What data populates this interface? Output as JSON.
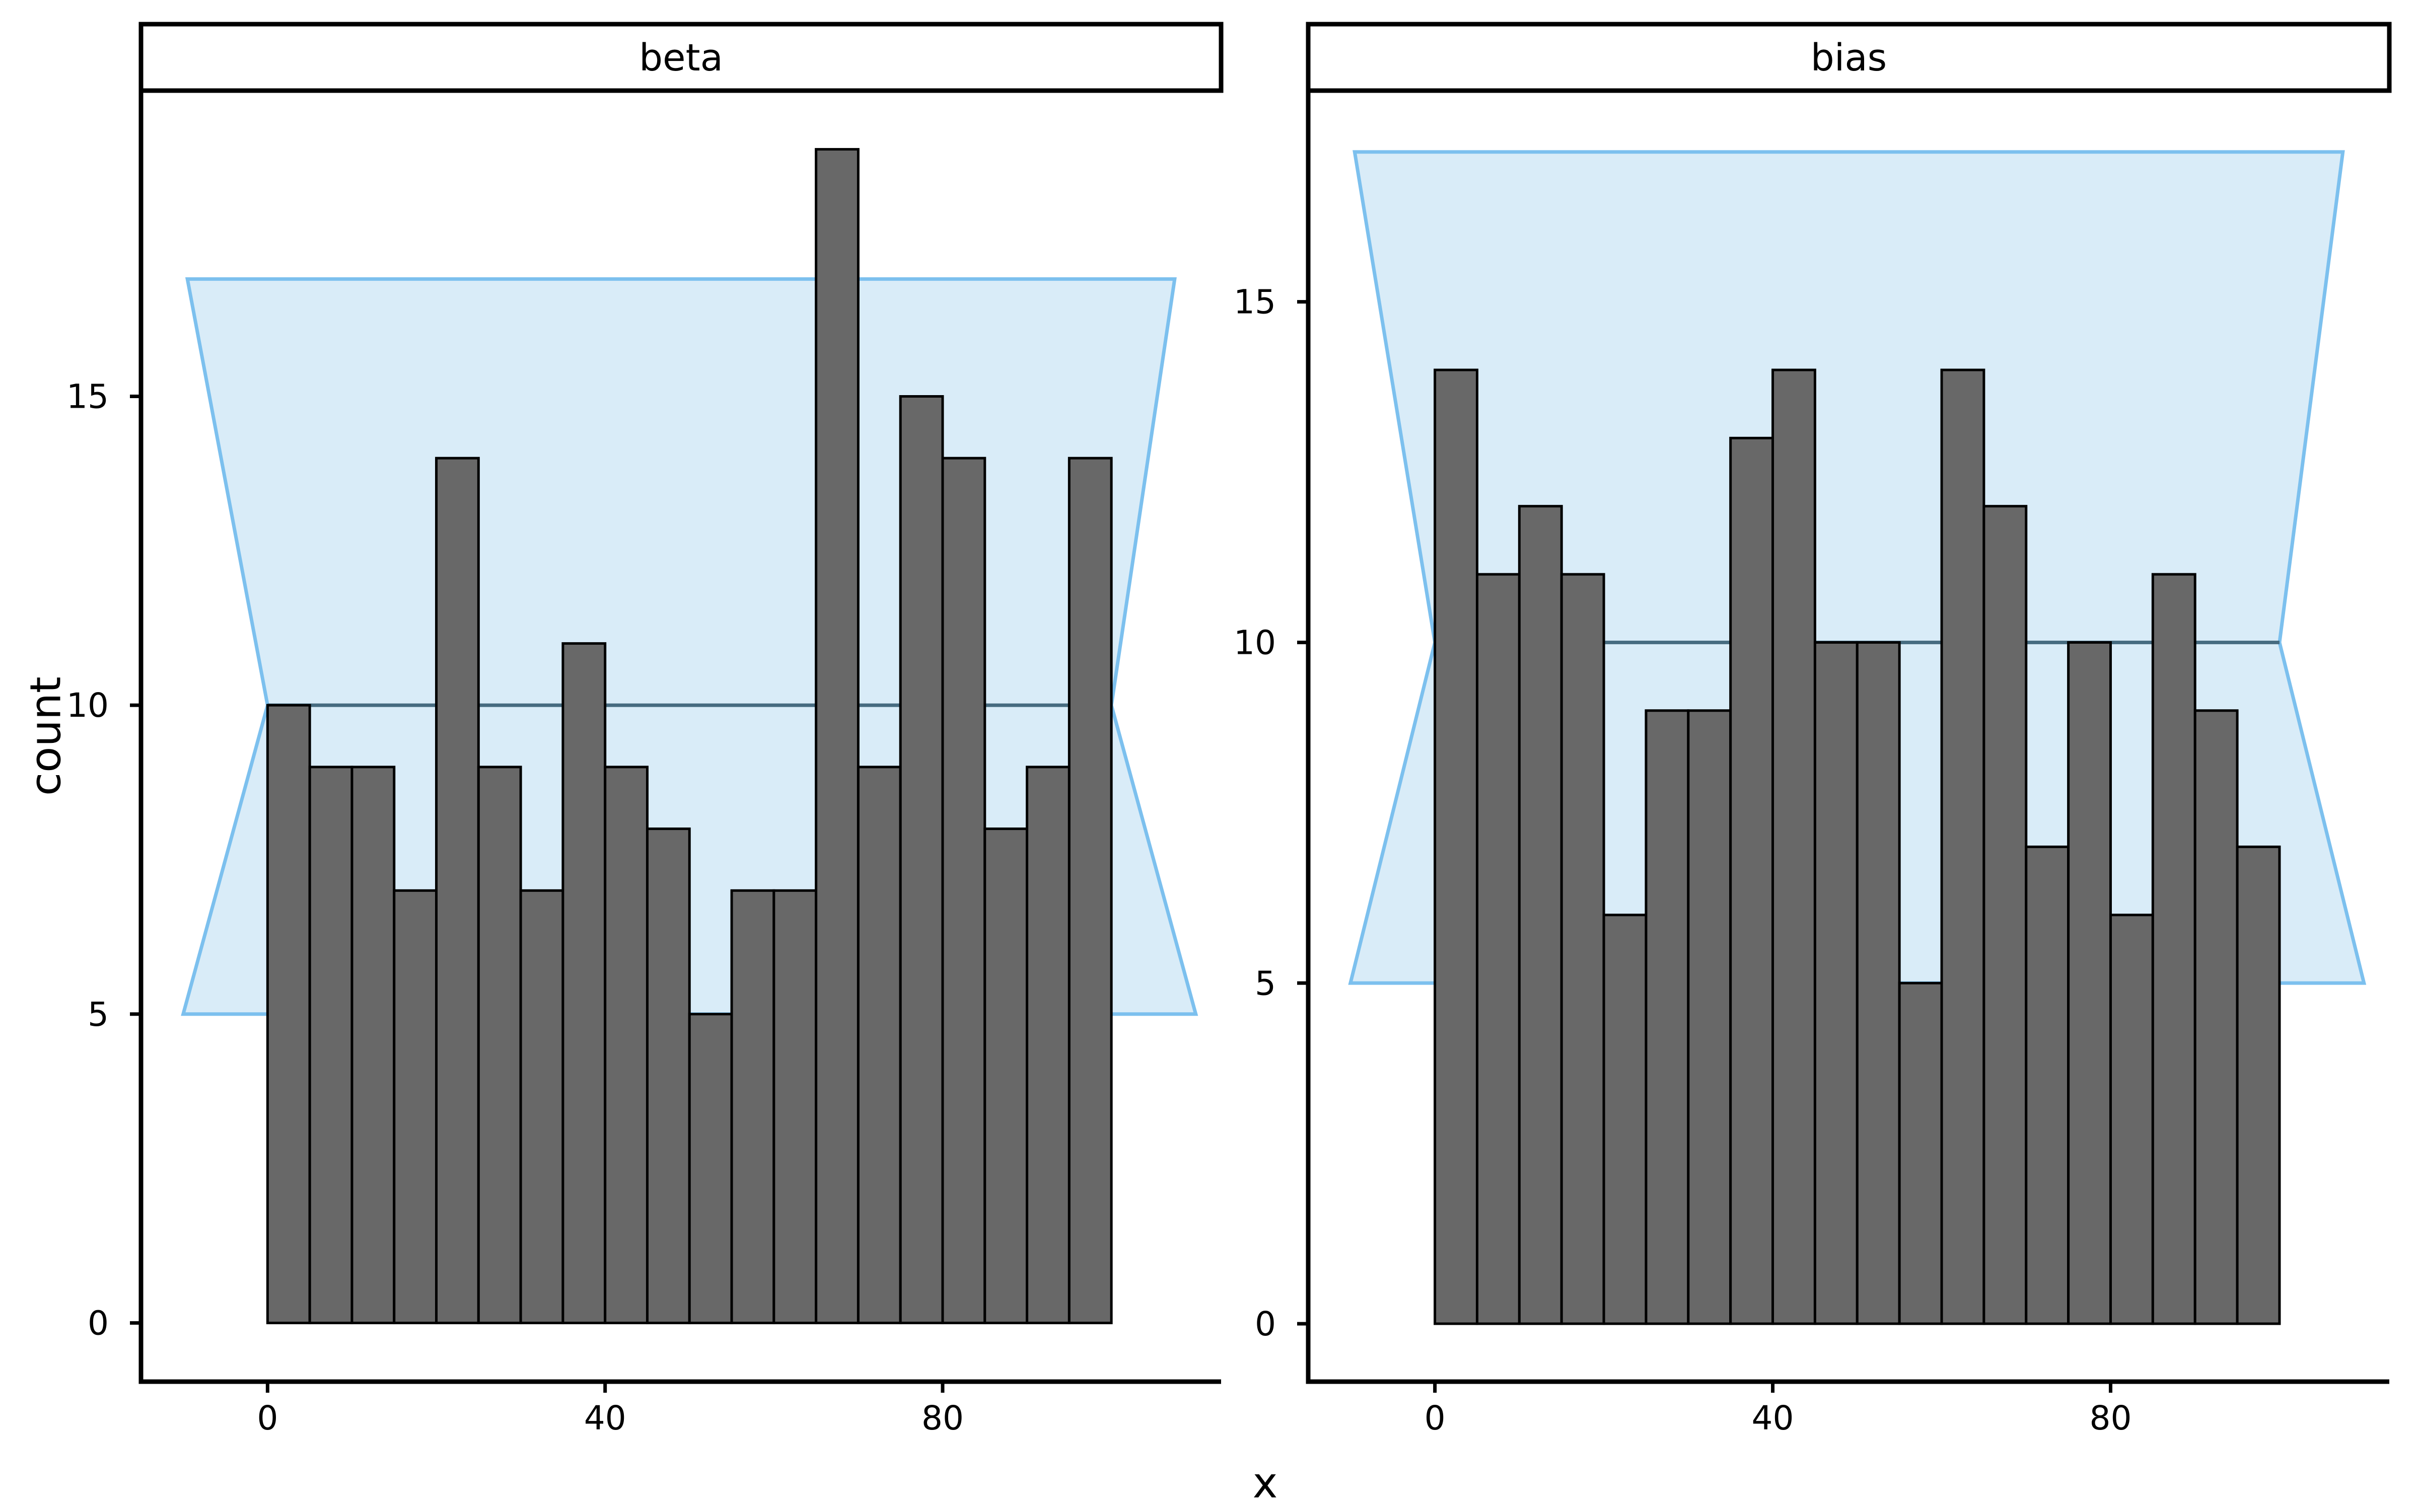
{
  "figure": {
    "kind": "faceted histogram with confidence ribbon",
    "background": "#ffffff"
  },
  "axes": {
    "x": {
      "title": "x",
      "ticks": [
        0,
        40,
        80
      ]
    },
    "y": {
      "title": "count",
      "ticks": [
        0,
        5,
        10,
        15
      ]
    }
  },
  "colors": {
    "ribbon_fill": "#d9ecf8",
    "ribbon_stroke": "#7cc0ee",
    "expected_line": "#466b80",
    "bar_fill": "#686868",
    "bar_stroke": "#000000",
    "axis_line": "#000000",
    "strip_fill": "#ffffff",
    "strip_stroke": "#000000",
    "text": "#000000"
  },
  "chart_data": [
    {
      "type": "bar",
      "label": "beta",
      "title": "beta",
      "xlabel": "x",
      "ylabel": "count",
      "bin_start": 0,
      "bin_width": 5,
      "categories": [
        "0-5",
        "5-10",
        "10-15",
        "15-20",
        "20-25",
        "25-30",
        "30-35",
        "35-40",
        "40-45",
        "45-50",
        "50-55",
        "55-60",
        "60-65",
        "65-70",
        "70-75",
        "75-80",
        "80-85",
        "85-90",
        "90-95",
        "95-100"
      ],
      "values": [
        10,
        9,
        9,
        7,
        14,
        9,
        7,
        11,
        9,
        8,
        5,
        7,
        7,
        19,
        9,
        15,
        14,
        8,
        9,
        14
      ],
      "xlim": [
        -15,
        113
      ],
      "ylim": [
        -0.95,
        19.95
      ],
      "ribbon_polygon": [
        [
          -9.5,
          16.9
        ],
        [
          0,
          10
        ],
        [
          -10,
          5
        ],
        [
          110,
          5
        ],
        [
          100,
          10
        ],
        [
          107.5,
          16.9
        ]
      ],
      "expected_line": {
        "y": 10,
        "x0": 0,
        "x1": 100
      },
      "legend": "none",
      "grid": "off"
    },
    {
      "type": "bar",
      "label": "bias",
      "title": "bias",
      "xlabel": "x",
      "ylabel": "count",
      "bin_start": 0,
      "bin_width": 5,
      "categories": [
        "0-5",
        "5-10",
        "10-15",
        "15-20",
        "20-25",
        "25-30",
        "30-35",
        "35-40",
        "40-45",
        "45-50",
        "50-55",
        "55-60",
        "60-65",
        "65-70",
        "70-75",
        "75-80",
        "80-85",
        "85-90",
        "90-95",
        "95-100"
      ],
      "values": [
        14,
        11,
        12,
        11,
        6,
        9,
        9,
        13,
        14,
        10,
        10,
        5,
        14,
        12,
        7,
        10,
        6,
        11,
        9,
        7
      ],
      "xlim": [
        -15,
        113
      ],
      "ylim": [
        -0.85,
        18.1
      ],
      "ribbon_polygon": [
        [
          -9.5,
          17.2
        ],
        [
          0,
          10
        ],
        [
          -10,
          5
        ],
        [
          110,
          5
        ],
        [
          100,
          10
        ],
        [
          107.5,
          17.2
        ]
      ],
      "expected_line": {
        "y": 10,
        "x0": 0,
        "x1": 100
      },
      "legend": "none",
      "grid": "off"
    }
  ]
}
